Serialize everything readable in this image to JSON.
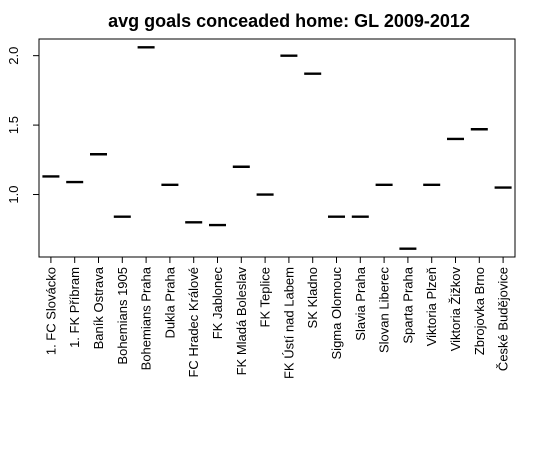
{
  "chart_data": {
    "type": "scatter",
    "marker": "horizontal-dash",
    "title": "avg goals conceaded home: GL 2009-2012",
    "xlabel": "",
    "ylabel": "",
    "ylim": [
      0.55,
      2.12
    ],
    "yticks": [
      "1.0",
      "1.5",
      "2.0"
    ],
    "ytick_values": [
      1.0,
      1.5,
      2.0
    ],
    "grid": false,
    "legend": "none",
    "categories": [
      "1. FC Slovácko",
      "1. FK Příbram",
      "Baník Ostrava",
      "Bohemians 1905",
      "Bohemians Praha",
      "Dukla Praha",
      "FC Hradec Králové",
      "FK Jablonec",
      "FK Mladá Boleslav",
      "FK Teplice",
      "FK Ústí nad Labem",
      "SK Kladno",
      "Sigma Olomouc",
      "Slavia Praha",
      "Slovan Liberec",
      "Sparta Praha",
      "Viktoria Plzeň",
      "Viktoria Žižkov",
      "Zbrojovka Brno",
      "České Budějovice"
    ],
    "values": [
      1.13,
      1.09,
      1.29,
      0.84,
      2.06,
      1.07,
      0.8,
      0.78,
      1.2,
      1.0,
      2.0,
      1.87,
      0.84,
      0.84,
      1.07,
      0.61,
      1.07,
      1.4,
      1.47,
      1.05
    ]
  },
  "colors": {
    "mark": "#000000",
    "axis": "#000000",
    "background": "#ffffff"
  }
}
